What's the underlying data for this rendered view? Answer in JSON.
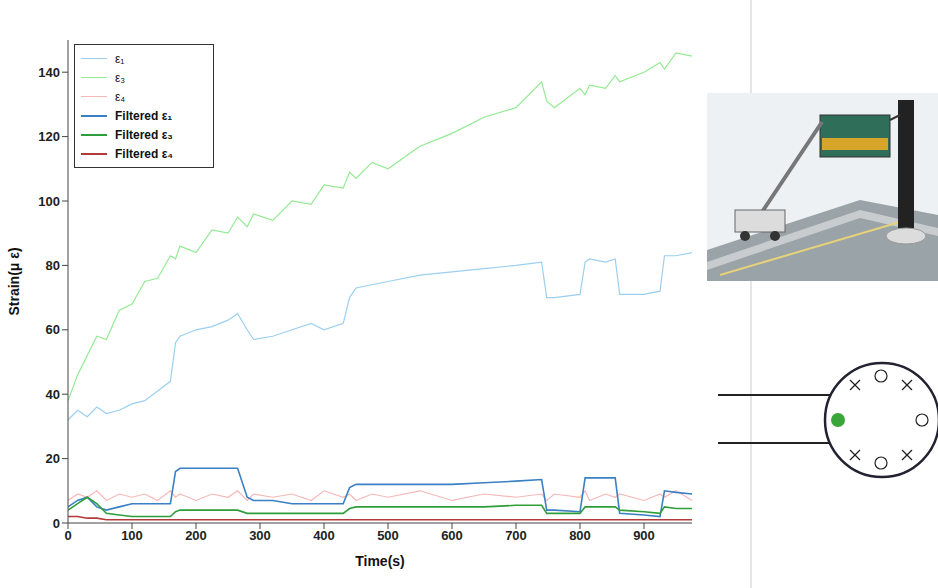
{
  "chart_data": {
    "type": "line",
    "x_label": "Time(s)",
    "y_label": "Strain(μ ε)",
    "xlim": [
      0,
      975
    ],
    "xticks": [
      0,
      100,
      200,
      300,
      400,
      500,
      600,
      700,
      800,
      900
    ],
    "ylim": [
      0,
      150
    ],
    "yticks": [
      0,
      20,
      40,
      60,
      80,
      100,
      120,
      140
    ],
    "grid": false,
    "legend": "upper left",
    "marker": "none",
    "x": [
      0,
      15,
      30,
      45,
      60,
      80,
      100,
      120,
      140,
      160,
      168,
      175,
      200,
      225,
      250,
      265,
      280,
      290,
      320,
      350,
      380,
      400,
      430,
      440,
      450,
      475,
      500,
      550,
      600,
      650,
      700,
      740,
      748,
      760,
      800,
      808,
      815,
      840,
      855,
      862,
      900,
      925,
      932,
      950,
      975
    ],
    "series": [
      {
        "name": "ε₁",
        "color": "#9ccff0",
        "values": [
          32,
          35,
          33,
          36,
          34,
          35,
          37,
          38,
          41,
          44,
          56,
          58,
          60,
          61,
          63,
          65,
          60,
          57,
          58,
          60,
          62,
          60,
          62,
          70,
          73,
          74,
          75,
          77,
          78,
          79,
          80,
          81,
          70,
          70,
          71,
          81,
          82,
          81,
          82,
          71,
          71,
          72,
          83,
          83,
          84
        ]
      },
      {
        "name": "ε₃",
        "color": "#93ea93",
        "values": [
          38,
          46,
          52,
          58,
          57,
          66,
          68,
          75,
          76,
          83,
          82,
          86,
          84,
          91,
          90,
          95,
          92,
          96,
          94,
          100,
          99,
          105,
          104,
          109,
          107,
          112,
          110,
          117,
          121,
          126,
          129,
          137,
          131,
          129,
          135,
          133,
          136,
          135,
          139,
          137,
          140,
          143,
          141,
          146,
          145
        ]
      },
      {
        "name": "ε₄",
        "color": "#f5b8b8",
        "values": [
          7,
          9,
          8,
          10,
          7,
          9,
          8,
          9,
          7,
          10,
          8,
          9,
          7,
          9,
          8,
          10,
          7,
          9,
          8,
          9,
          7,
          10,
          8,
          9,
          7,
          9,
          8,
          10,
          7,
          9,
          8,
          9,
          7,
          9,
          8,
          10,
          7,
          9,
          8,
          9,
          7,
          9,
          8,
          10,
          7
        ]
      },
      {
        "name": "Filtered ε₁",
        "color": "#3a80c4",
        "values": [
          5,
          7,
          8,
          5,
          4,
          5,
          6,
          6,
          6,
          6,
          16,
          17,
          17,
          17,
          17,
          17,
          8,
          7,
          7,
          6,
          6,
          6,
          6,
          11,
          12,
          12,
          12,
          12,
          12,
          12.5,
          13,
          13.5,
          4,
          4,
          3.5,
          14,
          14,
          14,
          14,
          3,
          2.5,
          2,
          10,
          9.5,
          9
        ]
      },
      {
        "name": "Filtered ε₃",
        "color": "#2e9e3a",
        "values": [
          4,
          6,
          8,
          6,
          3,
          2.5,
          2,
          2,
          2,
          2,
          3.5,
          4,
          4,
          4,
          4,
          4,
          3,
          3,
          3,
          3,
          3,
          3,
          3,
          4.5,
          5,
          5,
          5,
          5,
          5,
          5,
          5.5,
          5.5,
          3,
          3,
          3,
          5,
          5,
          5,
          5,
          4,
          3.5,
          3,
          5,
          4.5,
          4.5
        ]
      },
      {
        "name": "Filtered ε₄",
        "color": "#b23a3a",
        "values": [
          2,
          2,
          1.5,
          1.5,
          1,
          1,
          1,
          1,
          1,
          1,
          1,
          1,
          1,
          1,
          1,
          1,
          1,
          1,
          1,
          1,
          1,
          1,
          1,
          1,
          1,
          1,
          1,
          1,
          1,
          1,
          1,
          1,
          1,
          1,
          1,
          1,
          1,
          1,
          1,
          1,
          1,
          1,
          1,
          1,
          1
        ]
      }
    ]
  }
}
